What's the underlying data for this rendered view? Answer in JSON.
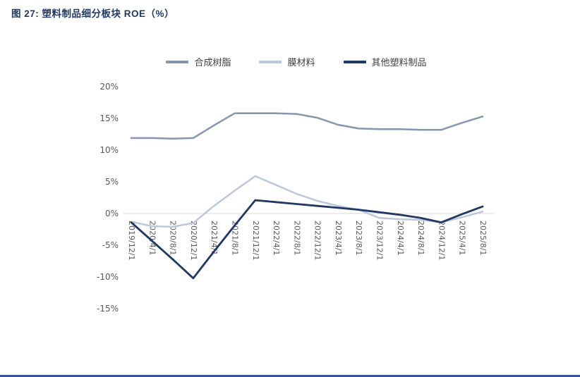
{
  "title": "图 27:  塑料制品细分板块 ROE（%）",
  "colors": {
    "title": "#1f3864",
    "axis_text": "#595959",
    "zero_line": "#d9d9d9",
    "footer_rule": "#2f5597"
  },
  "chart_data": {
    "type": "line",
    "title": "塑料制品细分板块 ROE（%）",
    "categories": [
      "2019/12/1",
      "2020/4/1",
      "2020/8/1",
      "2020/12/1",
      "2021/4/1",
      "2021/8/1",
      "2021/12/1",
      "2022/4/1",
      "2022/8/1",
      "2022/12/1",
      "2023/4/1",
      "2023/8/1",
      "2023/12/1",
      "2024/4/1",
      "2024/8/1",
      "2024/12/1",
      "2025/4/1",
      "2025/8/1"
    ],
    "series": [
      {
        "name": "合成树脂",
        "color": "#8496b0",
        "values": [
          11.9,
          11.9,
          11.8,
          11.9,
          13.9,
          15.8,
          15.8,
          15.8,
          15.7,
          15.1,
          14.0,
          13.4,
          13.3,
          13.3,
          13.2,
          13.2,
          14.3,
          15.3
        ]
      },
      {
        "name": "膜材料",
        "color": "#bcc7db",
        "values": [
          -1.3,
          -2.0,
          -2.1,
          -1.5,
          1.2,
          3.6,
          5.9,
          4.5,
          3.1,
          2.0,
          1.2,
          0.6,
          -0.7,
          -0.9,
          -1.0,
          -1.4,
          -0.6,
          0.3
        ]
      },
      {
        "name": "其他塑料制品",
        "color": "#1f3864",
        "values": [
          -1.4,
          -4.3,
          -7.2,
          -10.2,
          -6.0,
          -1.9,
          2.1,
          1.8,
          1.5,
          1.2,
          0.9,
          0.6,
          0.2,
          -0.2,
          -0.7,
          -1.4,
          -0.1,
          1.1
        ]
      }
    ],
    "xlabel": "",
    "ylabel": "",
    "ylim": [
      -15,
      20
    ],
    "yticks": [
      20,
      15,
      10,
      5,
      0,
      -5,
      -10,
      -15
    ],
    "ytick_labels": [
      "20%",
      "15%",
      "10%",
      "5%",
      "0%",
      "-5%",
      "-10%",
      "-15%"
    ],
    "legend_position": "top",
    "grid": "zero-line-only"
  }
}
